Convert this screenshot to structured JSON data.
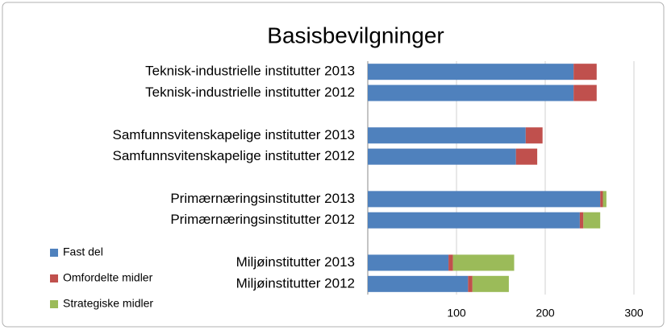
{
  "chart_data": {
    "type": "stacked-bar-horizontal",
    "title": "Basisbevilgninger",
    "categories": [
      "Teknisk-industrielle institutter 2013",
      "Teknisk-industrielle institutter 2012",
      null,
      "Samfunnsvitenskapelige institutter 2013",
      "Samfunnsvitenskapelige institutter 2012",
      null,
      "Primærnæringsinstitutter 2013",
      "Primærnæringsinstitutter 2012",
      null,
      "Miljøinstitutter 2013",
      "Miljøinstitutter 2012"
    ],
    "series": [
      {
        "name": "Fast del",
        "color": "#4f81bd",
        "values": [
          232,
          232,
          null,
          178,
          167,
          null,
          262,
          239,
          null,
          91,
          113
        ]
      },
      {
        "name": "Omfordelte midler",
        "color": "#c0504d",
        "values": [
          26,
          26,
          null,
          19,
          24,
          null,
          3,
          4,
          null,
          5,
          5
        ]
      },
      {
        "name": "Strategiske midler",
        "color": "#9bbb59",
        "values": [
          0,
          0,
          null,
          0,
          0,
          null,
          4,
          19,
          null,
          69,
          41
        ]
      }
    ],
    "xlim": [
      0,
      300
    ],
    "xticks": [
      100,
      200,
      300
    ],
    "grid": true,
    "legend": "bottom-left"
  }
}
